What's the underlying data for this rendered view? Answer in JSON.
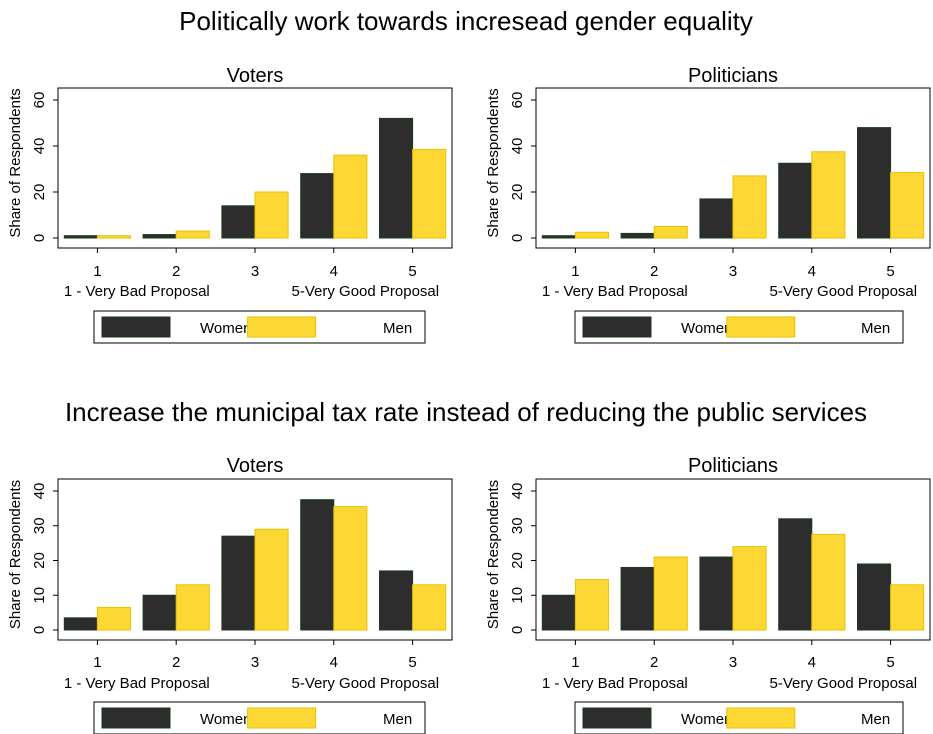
{
  "figure": {
    "groups": [
      {
        "title": "Politically work towards incresead gender equality"
      },
      {
        "title": "Increase the municipal tax rate instead of reducing the public services"
      }
    ]
  },
  "colors": {
    "women": "#2d2d2d",
    "men": "#fdd835",
    "women_edge": "#1a3b1a",
    "men_edge": "#e6c200"
  },
  "chart_data": [
    {
      "type": "bar",
      "group": 1,
      "title": "Voters",
      "ylabel": "Share of Respondents",
      "ylim": [
        0,
        60
      ],
      "yticks": [
        0,
        20,
        40,
        60
      ],
      "categories": [
        "1",
        "2",
        "3",
        "4",
        "5"
      ],
      "xlabel_left": "1 - Very Bad Proposal",
      "xlabel_right": "5-Very Good Proposal",
      "series": [
        {
          "name": "Women",
          "values": [
            1,
            1.5,
            14,
            28,
            52
          ]
        },
        {
          "name": "Men",
          "values": [
            1,
            3,
            20,
            36,
            38.5
          ]
        }
      ],
      "legend": "bottom"
    },
    {
      "type": "bar",
      "group": 1,
      "title": "Politicians",
      "ylabel": "Share of Respondents",
      "ylim": [
        0,
        60
      ],
      "yticks": [
        0,
        20,
        40,
        60
      ],
      "categories": [
        "1",
        "2",
        "3",
        "4",
        "5"
      ],
      "xlabel_left": "1 - Very Bad Proposal",
      "xlabel_right": "5-Very Good Proposal",
      "series": [
        {
          "name": "Women",
          "values": [
            1,
            2,
            17,
            32.5,
            48
          ]
        },
        {
          "name": "Men",
          "values": [
            2.5,
            5,
            27,
            37.5,
            28.5
          ]
        }
      ],
      "legend": "bottom"
    },
    {
      "type": "bar",
      "group": 2,
      "title": "Voters",
      "ylabel": "Share of Respondents",
      "ylim": [
        0,
        40
      ],
      "yticks": [
        0,
        10,
        20,
        30,
        40
      ],
      "categories": [
        "1",
        "2",
        "3",
        "4",
        "5"
      ],
      "xlabel_left": "1 - Very Bad Proposal",
      "xlabel_right": "5-Very Good Proposal",
      "series": [
        {
          "name": "Women",
          "values": [
            3.5,
            10,
            27,
            37.5,
            17
          ]
        },
        {
          "name": "Men",
          "values": [
            6.5,
            13,
            29,
            35.5,
            13
          ]
        }
      ],
      "legend": "bottom"
    },
    {
      "type": "bar",
      "group": 2,
      "title": "Politicians",
      "ylabel": "Share of Respondents",
      "ylim": [
        0,
        40
      ],
      "yticks": [
        0,
        10,
        20,
        30,
        40
      ],
      "categories": [
        "1",
        "2",
        "3",
        "4",
        "5"
      ],
      "xlabel_left": "1 - Very Bad Proposal",
      "xlabel_right": "5-Very Good Proposal",
      "series": [
        {
          "name": "Women",
          "values": [
            10,
            18,
            21,
            32,
            19
          ]
        },
        {
          "name": "Men",
          "values": [
            14.5,
            21,
            24,
            27.5,
            13
          ]
        }
      ],
      "legend": "bottom"
    }
  ]
}
